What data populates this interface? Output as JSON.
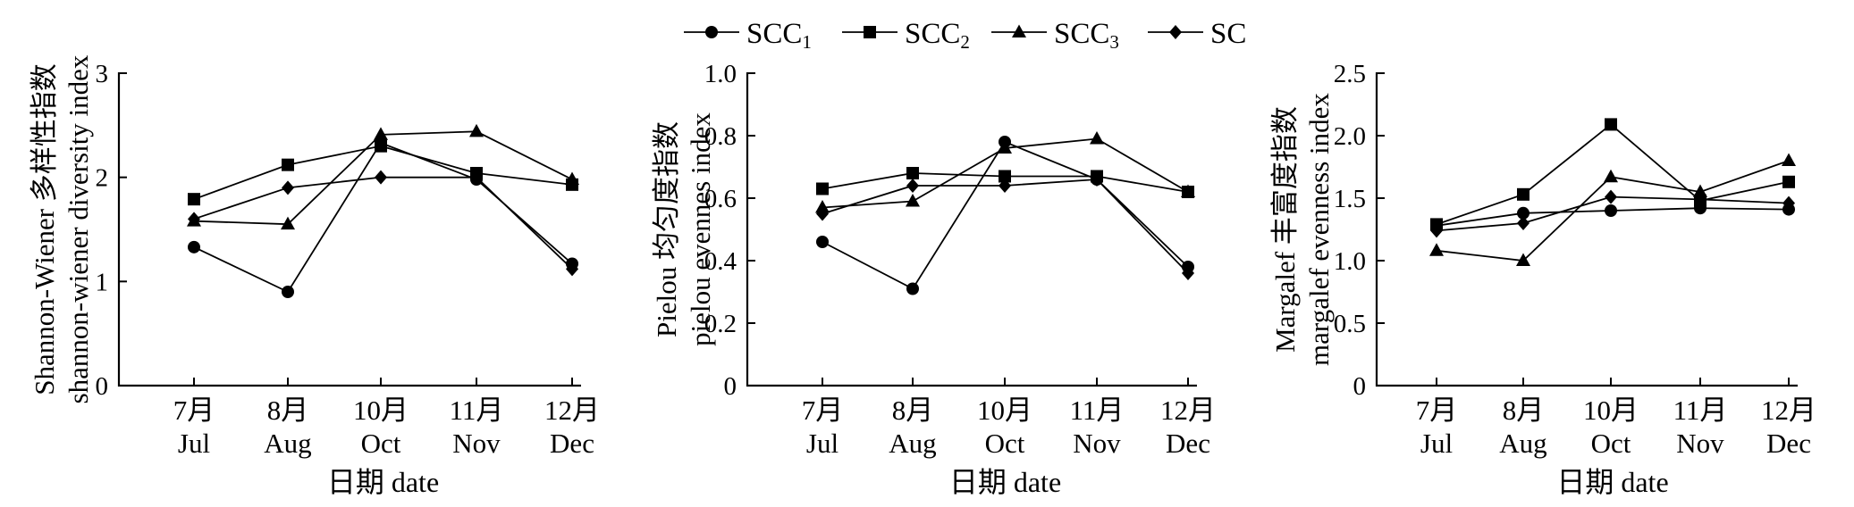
{
  "legend": [
    {
      "name": "SCC",
      "sub": "1",
      "marker": "circle"
    },
    {
      "name": "SCC",
      "sub": "2",
      "marker": "square"
    },
    {
      "name": "SCC",
      "sub": "3",
      "marker": "triangle"
    },
    {
      "name": "SC",
      "sub": "",
      "marker": "diamond"
    }
  ],
  "chart_data": [
    {
      "type": "line",
      "ylabel_lines": [
        "Shannon-Wiener 多样性指数",
        "shannon-wiener diversity index"
      ],
      "xlabel": "日期 date",
      "categories": [
        [
          "7月",
          "Jul"
        ],
        [
          "8月",
          "Aug"
        ],
        [
          "10月",
          "Oct"
        ],
        [
          "11月",
          "Nov"
        ],
        [
          "12月",
          "Dec"
        ]
      ],
      "ylim": [
        0,
        3
      ],
      "yticks": [
        0,
        1,
        2,
        3
      ],
      "ytick_labels": [
        "0",
        "1",
        "2",
        "3"
      ],
      "series": [
        {
          "name": "SCC1",
          "marker": "circle",
          "values": [
            1.33,
            0.9,
            2.33,
            1.98,
            1.17
          ]
        },
        {
          "name": "SCC2",
          "marker": "square",
          "values": [
            1.79,
            2.12,
            2.3,
            2.04,
            1.93
          ]
        },
        {
          "name": "SCC3",
          "marker": "triangle",
          "values": [
            1.58,
            1.55,
            2.41,
            2.44,
            1.98
          ]
        },
        {
          "name": "SC",
          "marker": "diamond",
          "values": [
            1.6,
            1.9,
            2.0,
            2.0,
            1.12
          ]
        }
      ]
    },
    {
      "type": "line",
      "ylabel_lines": [
        "Pielou 均匀度指数",
        "pielou evennes index"
      ],
      "xlabel": "日期 date",
      "categories": [
        [
          "7月",
          "Jul"
        ],
        [
          "8月",
          "Aug"
        ],
        [
          "10月",
          "Oct"
        ],
        [
          "11月",
          "Nov"
        ],
        [
          "12月",
          "Dec"
        ]
      ],
      "ylim": [
        0,
        1.0
      ],
      "yticks": [
        0,
        0.2,
        0.4,
        0.6,
        0.8,
        1.0
      ],
      "ytick_labels": [
        "0",
        "0.2",
        "0.4",
        "0.6",
        "0.8",
        "1.0"
      ],
      "series": [
        {
          "name": "SCC1",
          "marker": "circle",
          "values": [
            0.46,
            0.31,
            0.78,
            0.66,
            0.38
          ]
        },
        {
          "name": "SCC2",
          "marker": "square",
          "values": [
            0.63,
            0.68,
            0.67,
            0.67,
            0.62
          ]
        },
        {
          "name": "SCC3",
          "marker": "triangle",
          "values": [
            0.57,
            0.59,
            0.76,
            0.79,
            0.62
          ]
        },
        {
          "name": "SC",
          "marker": "diamond",
          "values": [
            0.55,
            0.64,
            0.64,
            0.66,
            0.36
          ]
        }
      ]
    },
    {
      "type": "line",
      "ylabel_lines": [
        "Margalef 丰富度指数",
        "margalef evenness index"
      ],
      "xlabel": "日期 date",
      "categories": [
        [
          "7月",
          "Jul"
        ],
        [
          "8月",
          "Aug"
        ],
        [
          "10月",
          "Oct"
        ],
        [
          "11月",
          "Nov"
        ],
        [
          "12月",
          "Dec"
        ]
      ],
      "ylim": [
        0,
        2.5
      ],
      "yticks": [
        0,
        0.5,
        1.0,
        1.5,
        2.0,
        2.5
      ],
      "ytick_labels": [
        "0",
        "0.5",
        "1.0",
        "1.5",
        "2.0",
        "2.5"
      ],
      "series": [
        {
          "name": "SCC1",
          "marker": "circle",
          "values": [
            1.28,
            1.38,
            1.4,
            1.42,
            1.41
          ]
        },
        {
          "name": "SCC2",
          "marker": "square",
          "values": [
            1.29,
            1.53,
            2.09,
            1.48,
            1.63
          ]
        },
        {
          "name": "SCC3",
          "marker": "triangle",
          "values": [
            1.08,
            1.0,
            1.67,
            1.55,
            1.8
          ]
        },
        {
          "name": "SC",
          "marker": "diamond",
          "values": [
            1.24,
            1.3,
            1.51,
            1.49,
            1.46
          ]
        }
      ]
    }
  ]
}
